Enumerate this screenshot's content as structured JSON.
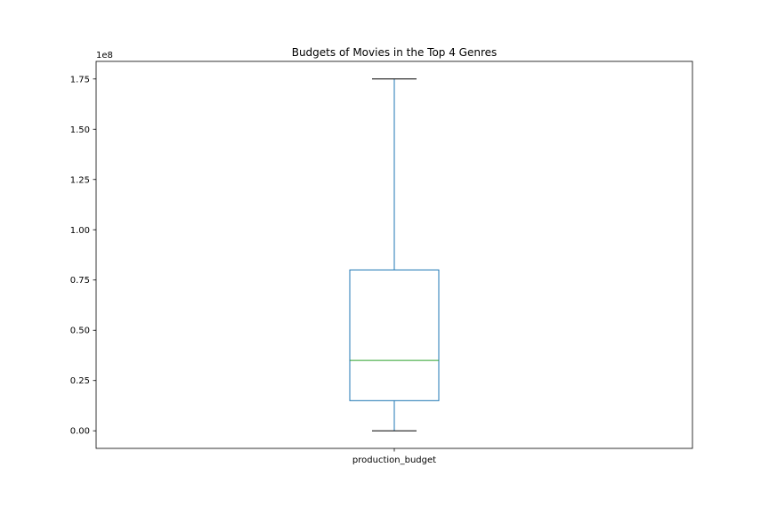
{
  "chart_data": {
    "type": "box",
    "title": "Budgets of Movies in the Top 4 Genres",
    "categories": [
      "production_budget"
    ],
    "offset_text": "1e8",
    "xlabel": "",
    "ylabel": "",
    "ylim": [
      -0.0875,
      1.8375
    ],
    "yticks": [
      0.0,
      0.25,
      0.5,
      0.75,
      1.0,
      1.25,
      1.5,
      1.75
    ],
    "ytick_labels": [
      "0.00",
      "0.25",
      "0.50",
      "0.75",
      "1.00",
      "1.25",
      "1.50",
      "1.75"
    ],
    "grid": false,
    "boxes": [
      {
        "category": "production_budget",
        "whisker_low": 0.0,
        "q1": 0.15,
        "median": 0.35,
        "q3": 0.8,
        "whisker_high": 1.75
      }
    ],
    "colors": {
      "box": "#1f77b4",
      "median": "#2ca02c",
      "caps": "#000000",
      "axes": "#000000"
    }
  }
}
